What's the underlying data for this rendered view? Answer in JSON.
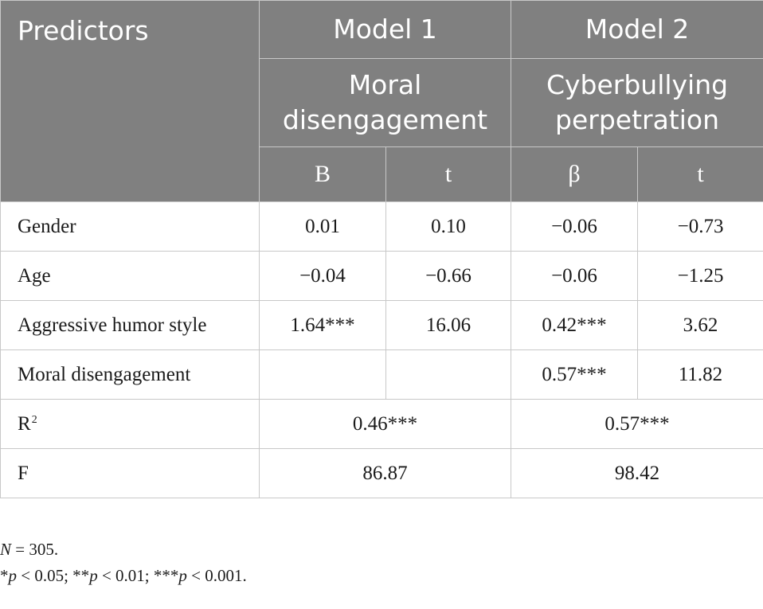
{
  "header": {
    "predictors": "Predictors",
    "model1": "Model 1",
    "model2": "Model 2",
    "model1_dv_line1": "Moral",
    "model1_dv_line2": "disengagement",
    "model2_dv_line1": "Cyberbullying",
    "model2_dv_line2": "perpetration",
    "m1_coef": "B",
    "m1_t": "t",
    "m2_coef": "β",
    "m2_t": "t"
  },
  "rows": [
    {
      "label": "Gender",
      "m1_coef": "0.01",
      "m1_t": "0.10",
      "m2_coef": "−0.06",
      "m2_t": "−0.73"
    },
    {
      "label": "Age",
      "m1_coef": "−0.04",
      "m1_t": "−0.66",
      "m2_coef": "−0.06",
      "m2_t": "−1.25"
    },
    {
      "label": "Aggressive humor style",
      "m1_coef": "1.64***",
      "m1_t": "16.06",
      "m2_coef": "0.42***",
      "m2_t": "3.62"
    },
    {
      "label": "Moral disengagement",
      "m1_coef": "",
      "m1_t": "",
      "m2_coef": "0.57***",
      "m2_t": "11.82"
    }
  ],
  "summary": {
    "r2_label": "R",
    "r2_sup": "2",
    "r2_m1": "0.46***",
    "r2_m2": "0.57***",
    "f_label": "F",
    "f_m1": "86.87",
    "f_m2": "98.42"
  },
  "notes": {
    "n_symbol": "N",
    "n_value": " = 305.",
    "p1": "p",
    "p1_prefix": "*",
    "p1_suffix": " < 0.05; **",
    "p2": "p",
    "p2_suffix": " < 0.01; ***",
    "p3": "p",
    "p3_suffix": " < 0.001."
  }
}
